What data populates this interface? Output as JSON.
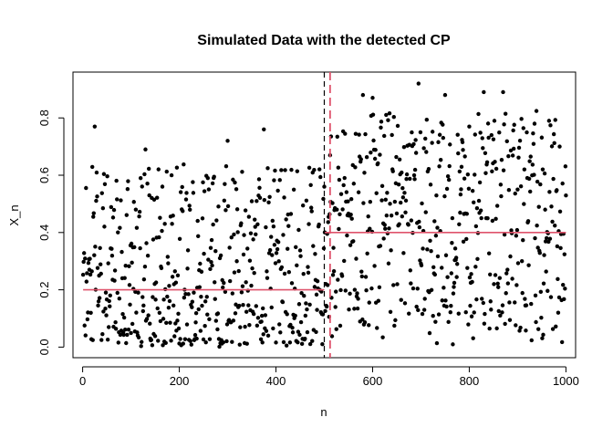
{
  "chart_data": {
    "type": "scatter",
    "title": "Simulated Data with the detected CP",
    "xlabel": "n",
    "ylabel": "X_n",
    "xlim": [
      -20,
      1020
    ],
    "ylim": [
      -0.037,
      0.96
    ],
    "xticks": [
      0,
      200,
      400,
      600,
      800,
      1000
    ],
    "xtick_labels": [
      "0",
      "200",
      "400",
      "600",
      "800",
      "1000"
    ],
    "yticks": [
      0.0,
      0.2,
      0.4,
      0.6,
      0.8
    ],
    "ytick_labels": [
      "0.0",
      "0.2",
      "0.4",
      "0.6",
      "0.8"
    ],
    "grid": false,
    "n_points": 1000,
    "segments": [
      {
        "x_start": 1,
        "x_end": 500,
        "mean": 0.2,
        "approx_min": 0.0,
        "approx_max": 0.77,
        "color": "#df536b"
      },
      {
        "x_start": 501,
        "x_end": 1000,
        "mean": 0.4,
        "approx_min": 0.0,
        "approx_max": 0.92,
        "color": "#df536b"
      }
    ],
    "true_cp": {
      "x": 500,
      "style": "dashed",
      "color": "#000000"
    },
    "detected_cp": {
      "x": 512,
      "style": "dashed",
      "color": "#df536b"
    },
    "point_color": "#000000",
    "point_samples_hint": [
      [
        25,
        0.77
      ],
      [
        130,
        0.69
      ],
      [
        300,
        0.72
      ],
      [
        375,
        0.76
      ],
      [
        580,
        0.88
      ],
      [
        600,
        0.87
      ],
      [
        695,
        0.92
      ],
      [
        750,
        0.88
      ],
      [
        830,
        0.89
      ],
      [
        870,
        0.89
      ],
      [
        935,
        0.78
      ],
      [
        965,
        0.79
      ]
    ]
  }
}
